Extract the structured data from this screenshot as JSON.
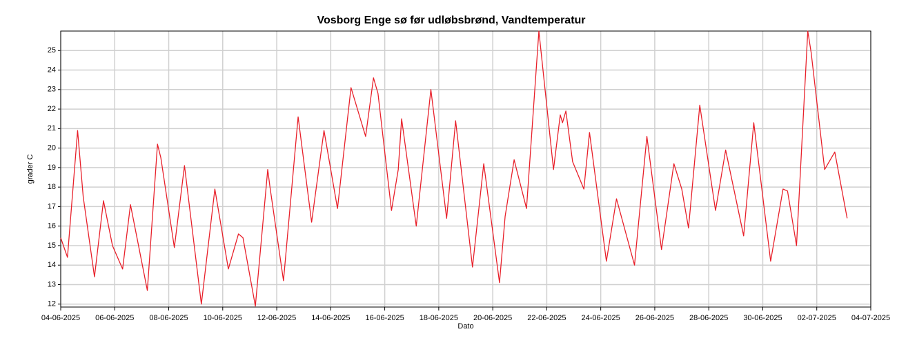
{
  "chart_data": {
    "type": "line",
    "title": "Vosborg Enge sø før udløbsbrønd, Vandtemperatur",
    "x_label": "Dato",
    "y_label": "grader C",
    "color": "#e8202a",
    "grid": true,
    "x": [
      "2025-06-04T00:00",
      "2025-06-04T06:00",
      "2025-06-04T15:00",
      "2025-06-04T20:00",
      "2025-06-05T06:00",
      "2025-06-05T14:00",
      "2025-06-05T22:00",
      "2025-06-06T07:00",
      "2025-06-06T14:00",
      "2025-06-07T05:00",
      "2025-06-07T14:00",
      "2025-06-07T17:00",
      "2025-06-08T05:00",
      "2025-06-08T14:00",
      "2025-06-09T05:00",
      "2025-06-09T17:00",
      "2025-06-10T05:00",
      "2025-06-10T14:00",
      "2025-06-10T18:00",
      "2025-06-11T05:00",
      "2025-06-11T16:00",
      "2025-06-11T18:00",
      "2025-06-12T06:00",
      "2025-06-12T19:00",
      "2025-06-13T07:00",
      "2025-06-13T18:00",
      "2025-06-14T06:00",
      "2025-06-14T18:00",
      "2025-06-15T07:00",
      "2025-06-15T14:00",
      "2025-06-15T18:00",
      "2025-06-16T06:00",
      "2025-06-16T12:00",
      "2025-06-16T15:00",
      "2025-06-17T04:00",
      "2025-06-17T17:00",
      "2025-06-18T07:00",
      "2025-06-18T15:00",
      "2025-06-19T06:00",
      "2025-06-19T16:00",
      "2025-06-20T06:00",
      "2025-06-20T11:00",
      "2025-06-20T19:00",
      "2025-06-21T06:00",
      "2025-06-21T17:00",
      "2025-06-22T06:00",
      "2025-06-22T12:00",
      "2025-06-22T14:00",
      "2025-06-22T17:00",
      "2025-06-22T23:00",
      "2025-06-23T09:00",
      "2025-06-23T14:00",
      "2025-06-24T05:00",
      "2025-06-24T14:00",
      "2025-06-25T06:00",
      "2025-06-25T17:00",
      "2025-06-26T06:00",
      "2025-06-26T17:00",
      "2025-06-27T00:00",
      "2025-06-27T06:00",
      "2025-06-27T16:00",
      "2025-06-28T06:00",
      "2025-06-28T15:00",
      "2025-06-29T07:00",
      "2025-06-29T16:00",
      "2025-06-30T07:00",
      "2025-06-30T18:00",
      "2025-06-30T22:00",
      "2025-07-01T06:00",
      "2025-07-01T16:00",
      "2025-07-01T19:00",
      "2025-07-02T07:00",
      "2025-07-02T16:00",
      "2025-07-03T03:00"
    ],
    "values": [
      15.4,
      14.4,
      20.9,
      17.5,
      13.4,
      17.3,
      15.0,
      13.8,
      17.1,
      12.7,
      20.2,
      19.5,
      14.9,
      19.1,
      12.0,
      17.9,
      13.8,
      15.6,
      15.4,
      11.9,
      18.9,
      18.0,
      13.2,
      21.6,
      16.2,
      20.9,
      16.9,
      23.1,
      20.6,
      23.6,
      22.8,
      16.8,
      18.9,
      21.5,
      16.0,
      23.0,
      16.4,
      21.4,
      13.9,
      19.2,
      13.1,
      16.5,
      19.4,
      16.9,
      26.0,
      18.9,
      21.7,
      21.3,
      21.9,
      19.3,
      17.9,
      20.8,
      14.2,
      17.4,
      14.0,
      20.6,
      14.8,
      19.2,
      17.9,
      15.9,
      22.2,
      16.8,
      19.9,
      15.5,
      21.3,
      14.2,
      17.9,
      17.8,
      15.0,
      26.0,
      24.9,
      18.9,
      19.8,
      16.4
    ],
    "xlim": [
      "2025-06-04",
      "2025-07-04"
    ],
    "xticks": [
      {
        "value": "2025-06-04",
        "label": "04-06-2025"
      },
      {
        "value": "2025-06-06",
        "label": "06-06-2025"
      },
      {
        "value": "2025-06-08",
        "label": "08-06-2025"
      },
      {
        "value": "2025-06-10",
        "label": "10-06-2025"
      },
      {
        "value": "2025-06-12",
        "label": "12-06-2025"
      },
      {
        "value": "2025-06-14",
        "label": "14-06-2025"
      },
      {
        "value": "2025-06-16",
        "label": "16-06-2025"
      },
      {
        "value": "2025-06-18",
        "label": "18-06-2025"
      },
      {
        "value": "2025-06-20",
        "label": "20-06-2025"
      },
      {
        "value": "2025-06-22",
        "label": "22-06-2025"
      },
      {
        "value": "2025-06-24",
        "label": "24-06-2025"
      },
      {
        "value": "2025-06-26",
        "label": "26-06-2025"
      },
      {
        "value": "2025-06-28",
        "label": "28-06-2025"
      },
      {
        "value": "2025-06-30",
        "label": "30-06-2025"
      },
      {
        "value": "2025-07-02",
        "label": "02-07-2025"
      },
      {
        "value": "2025-07-04",
        "label": "04-07-2025"
      }
    ],
    "ylim": [
      11.85,
      26
    ],
    "yticks": [
      12,
      13,
      14,
      15,
      16,
      17,
      18,
      19,
      20,
      21,
      22,
      23,
      24,
      25
    ]
  }
}
